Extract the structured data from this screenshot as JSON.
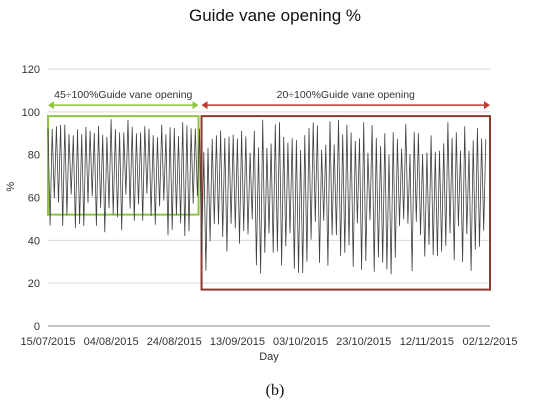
{
  "figure": {
    "caption": "(b)"
  },
  "chart_data": {
    "type": "line",
    "title": "Guide vane opening %",
    "xlabel": "Day",
    "ylabel": "%",
    "ylim": [
      0,
      120
    ],
    "yticks": [
      0,
      20,
      40,
      60,
      80,
      100,
      120
    ],
    "xlim": [
      "2015-07-15",
      "2015-12-02"
    ],
    "xtick_labels": [
      "15/07/2015",
      "04/08/2015",
      "24/08/2015",
      "13/09/2015",
      "03/10/2015",
      "23/10/2015",
      "12/11/2015",
      "02/12/2015"
    ],
    "grid": "horizontal",
    "colors": {
      "series": "#404040",
      "region1": "#8cc63f",
      "region2": "#c0392b",
      "region2_border": "#8b3a2a"
    },
    "annotations": [
      {
        "name": "region-45-100",
        "text": "45÷100%Guide vane opening",
        "x_start": "2015-07-15",
        "x_end": "2015-09-01",
        "y_low": 52,
        "y_high": 98,
        "color": "#8cc63f"
      },
      {
        "name": "region-20-100",
        "text": "20÷100%Guide vane opening",
        "x_start": "2015-09-01",
        "x_end": "2015-12-02",
        "y_low": 17,
        "y_high": 98,
        "color": "#c0392b"
      }
    ],
    "series": [
      {
        "pattern": "daily oscillation between low and high opening",
        "x_start": "2015-07-15",
        "x_end": "2015-12-01",
        "segments": [
          {
            "from": "2015-07-15",
            "to": "2015-09-01",
            "low_range": [
              42,
              62
            ],
            "high_range": [
              88,
              97
            ]
          },
          {
            "from": "2015-09-01",
            "to": "2015-12-01",
            "low_range": [
              24,
              50
            ],
            "high_range": [
              80,
              97
            ]
          }
        ]
      }
    ]
  }
}
